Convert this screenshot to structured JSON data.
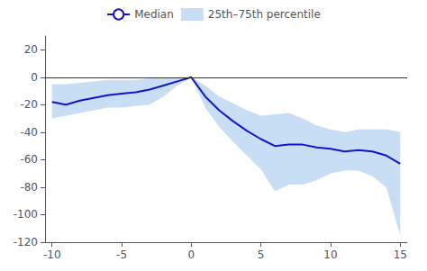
{
  "chart_data": {
    "type": "line",
    "x": [
      -10,
      -9,
      -8,
      -7,
      -6,
      -5,
      -4,
      -3,
      -2,
      -1,
      0,
      1,
      2,
      3,
      4,
      5,
      6,
      7,
      8,
      9,
      10,
      11,
      12,
      13,
      14,
      15
    ],
    "series": [
      {
        "name": "Median",
        "type": "line",
        "color": "#1414cc",
        "values": [
          -18,
          -20,
          -17,
          -15,
          -13,
          -12,
          -11,
          -9,
          -6,
          -3,
          0,
          -14,
          -24,
          -32,
          -39,
          -45,
          -50,
          -49,
          -49,
          -51,
          -52,
          -54,
          -53,
          -54,
          -57,
          -63
        ]
      },
      {
        "name": "25th–75th percentile",
        "type": "band",
        "color": "#aaccee",
        "lower": [
          -30,
          -28,
          -26,
          -24,
          -22,
          -22,
          -21,
          -20,
          -14,
          -6,
          0,
          -22,
          -36,
          -47,
          -57,
          -67,
          -83,
          -78,
          -78,
          -75,
          -70,
          -68,
          -68,
          -72,
          -80,
          -115
        ],
        "upper": [
          -5,
          -5,
          -4,
          -3,
          -2,
          -2,
          -2,
          -1,
          -1,
          0,
          0,
          -6,
          -14,
          -19,
          -24,
          -28,
          -27,
          -26,
          -30,
          -35,
          -38,
          -40,
          -38,
          -38,
          -38,
          -40
        ]
      }
    ],
    "hlines": [
      {
        "value": 0,
        "color": "#333333"
      }
    ],
    "xlim": [
      -10.5,
      15.5
    ],
    "xticks": [
      -10,
      -5,
      0,
      5,
      10,
      15
    ],
    "ylim": [
      -120,
      30
    ],
    "yticks": [
      -120,
      -100,
      -80,
      -60,
      -40,
      -20,
      0,
      20
    ],
    "grid": false,
    "legend": "top"
  }
}
